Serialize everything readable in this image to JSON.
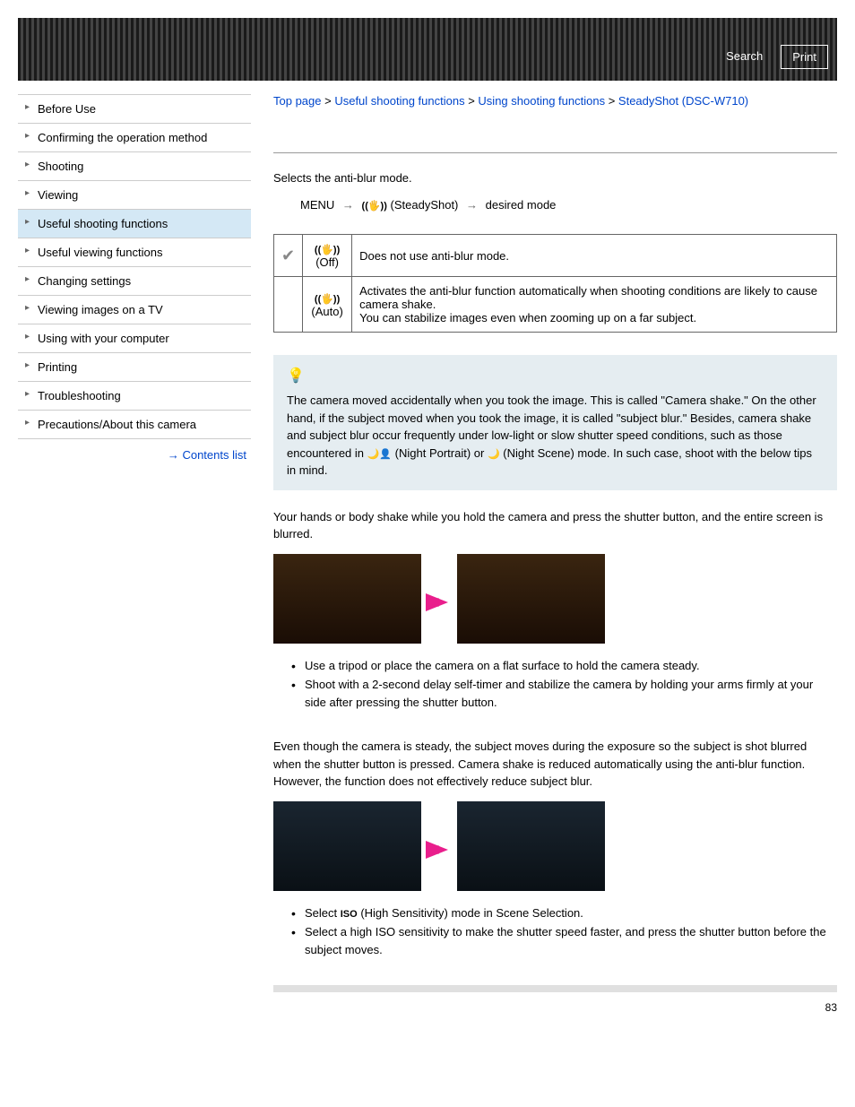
{
  "header": {
    "search_label": "Search",
    "print_label": "Print"
  },
  "breadcrumb": {
    "items": [
      "Top page",
      "Useful shooting functions",
      "Using shooting functions",
      "SteadyShot (DSC-W710)"
    ],
    "separator": " > "
  },
  "sidebar": {
    "items": [
      {
        "label": "Before Use",
        "active": false
      },
      {
        "label": "Confirming the operation method",
        "active": false
      },
      {
        "label": "Shooting",
        "active": false
      },
      {
        "label": "Viewing",
        "active": false
      },
      {
        "label": "Useful shooting functions",
        "active": true
      },
      {
        "label": "Useful viewing functions",
        "active": false
      },
      {
        "label": "Changing settings",
        "active": false
      },
      {
        "label": "Viewing images on a TV",
        "active": false
      },
      {
        "label": "Using with your computer",
        "active": false
      },
      {
        "label": "Printing",
        "active": false
      },
      {
        "label": "Troubleshooting",
        "active": false
      },
      {
        "label": "Precautions/About this camera",
        "active": false
      }
    ],
    "contents_link": "Contents list"
  },
  "content": {
    "intro": "Selects the anti-blur mode.",
    "menu_prefix": "MENU",
    "menu_mid": "(SteadyShot)",
    "menu_suffix": "desired mode",
    "table": {
      "rows": [
        {
          "checked": true,
          "mode": "(Off)",
          "desc": "Does not use anti-blur mode."
        },
        {
          "checked": false,
          "mode": "(Auto)",
          "desc": "Activates the anti-blur function automatically when shooting conditions are likely to cause camera shake.\nYou can stabilize images even when zooming up on a far subject."
        }
      ]
    },
    "tip_text_1": "The camera moved accidentally when you took the image. This is called \"Camera shake.\" On the other hand, if the subject moved when you took the image, it is called \"subject blur.\" Besides, camera shake and subject blur occur frequently under low-light or slow shutter speed conditions, such as those encountered in ",
    "tip_portrait": "(Night Portrait) or ",
    "tip_scene": "(Night Scene) mode. In such case, shoot with the below tips in mind.",
    "section1_text": "Your hands or body shake while you hold the camera and press the shutter button, and the entire screen is blurred.",
    "section1_bullets": [
      "Use a tripod or place the camera on a flat surface to hold the camera steady.",
      "Shoot with a 2-second delay self-timer and stabilize the camera by holding your arms firmly at your side after pressing the shutter button."
    ],
    "section2_text": "Even though the camera is steady, the subject moves during the exposure so the subject is shot blurred when the shutter button is pressed. Camera shake is reduced automatically using the anti-blur function. However, the function does not effectively reduce subject blur.",
    "section2_b1_prefix": "Select ",
    "section2_b1_iso": "ISO",
    "section2_b1_suffix": "(High Sensitivity) mode in Scene Selection.",
    "section2_b2": "Select a high ISO sensitivity to make the shutter speed faster, and press the shutter button before the subject moves.",
    "page_number": "83"
  }
}
